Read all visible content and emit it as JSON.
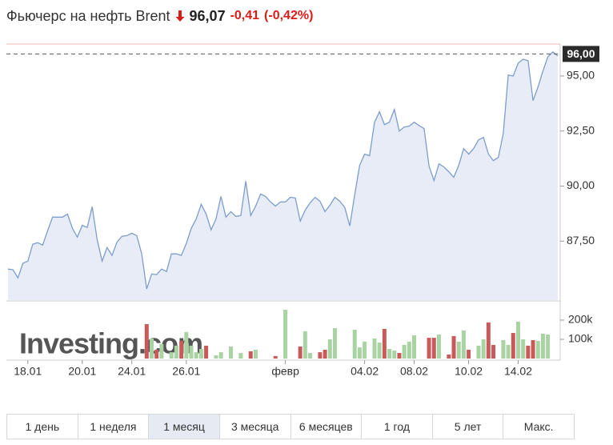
{
  "header": {
    "title": "Фьючерс на нефть Brent",
    "price": "96,07",
    "change": "-0,41",
    "change_pct": "(-0,42%)"
  },
  "watermark": "Investing.com",
  "tabs": [
    "1 день",
    "1 неделя",
    "1 месяц",
    "3 месяца",
    "6 месяцев",
    "1 год",
    "5 лет",
    "Макс."
  ],
  "active_tab": 2,
  "chart_data": {
    "type": "area",
    "categories": [
      null,
      null,
      null,
      null,
      "18.01",
      null,
      null,
      null,
      null,
      null,
      null,
      null,
      null,
      null,
      null,
      "20.01",
      null,
      null,
      null,
      null,
      null,
      null,
      null,
      null,
      null,
      "24.01",
      null,
      null,
      null,
      null,
      null,
      null,
      null,
      null,
      null,
      null,
      "26.01",
      null,
      null,
      null,
      null,
      null,
      null,
      null,
      null,
      null,
      null,
      null,
      null,
      null,
      null,
      null,
      null,
      null,
      null,
      null,
      "февр",
      null,
      null,
      null,
      null,
      null,
      null,
      null,
      null,
      null,
      null,
      null,
      null,
      null,
      null,
      null,
      "04.02",
      null,
      null,
      null,
      null,
      null,
      null,
      null,
      null,
      null,
      "08.02",
      null,
      null,
      null,
      null,
      null,
      null,
      null,
      null,
      null,
      null,
      "10.02",
      null,
      null,
      null,
      null,
      null,
      null,
      null,
      null,
      null,
      "14.02",
      null,
      null,
      null,
      null,
      null,
      null,
      null,
      null
    ],
    "series": [
      {
        "color": "#7d9dcc",
        "values": [
          86.23,
          86.2,
          85.83,
          86.49,
          86.59,
          87.36,
          87.43,
          87.32,
          87.97,
          88.59,
          88.59,
          88.59,
          88.73,
          88.08,
          87.68,
          88.22,
          88.12,
          89.06,
          87.57,
          86.59,
          87.21,
          86.85,
          87.46,
          87.72,
          87.75,
          87.86,
          87.75,
          86.92,
          85.33,
          86.01,
          85.98,
          86.23,
          86.12,
          86.92,
          86.92,
          86.85,
          87.39,
          88.08,
          88.51,
          89.17,
          88.73,
          88.01,
          88.51,
          89.53,
          88.59,
          88.84,
          88.62,
          88.66,
          90.22,
          88.66,
          89.09,
          89.64,
          89.53,
          89.28,
          89.09,
          89.28,
          89.28,
          89.49,
          89.46,
          88.41,
          88.91,
          89.24,
          89.49,
          89.31,
          88.84,
          89.13,
          89.49,
          89.31,
          89.02,
          88.19,
          89.6,
          90.94,
          91.45,
          91.38,
          92.9,
          93.37,
          92.79,
          92.9,
          93.48,
          92.5,
          92.68,
          92.72,
          92.9,
          92.75,
          92.61,
          90.91,
          90.25,
          91.01,
          90.87,
          90.65,
          90.4,
          90.94,
          91.7,
          91.45,
          91.7,
          92.1,
          92.21,
          91.45,
          91.16,
          91.3,
          92.39,
          95.04,
          95.0,
          95.58,
          95.76,
          95.69,
          93.88,
          94.49,
          95.22,
          95.87,
          96.09,
          95.91
        ]
      }
    ],
    "ylim": [
      84.82,
      96.45
    ],
    "yticks": [
      {
        "value": 87.5,
        "label": "87,50"
      },
      {
        "value": 90,
        "label": "90,00"
      },
      {
        "value": 92.5,
        "label": "92,50"
      },
      {
        "value": 95,
        "label": "95,00"
      }
    ],
    "last_value": {
      "value": 96,
      "label": "96,00"
    },
    "volume": {
      "type": "bar",
      "up_color": "#a9d3a3",
      "down_color": "#c85a5a",
      "values": [
        null,
        null,
        null,
        null,
        null,
        null,
        null,
        null,
        null,
        null,
        null,
        null,
        null,
        null,
        null,
        null,
        null,
        null,
        null,
        null,
        null,
        null,
        null,
        null,
        null,
        null,
        null,
        null,
        179000,
        104000,
        46000,
        75000,
        null,
        33000,
        67000,
        92000,
        138000,
        67000,
        33000,
        50000,
        67000,
        null,
        17000,
        33000,
        null,
        63000,
        null,
        29000,
        null,
        38000,
        46000,
        null,
        null,
        null,
        13000,
        null,
        254000,
        null,
        null,
        63000,
        142000,
        29000,
        null,
        33000,
        46000,
        100000,
        158000,
        null,
        null,
        null,
        150000,
        58000,
        88000,
        null,
        104000,
        83000,
        154000,
        50000,
        42000,
        29000,
        71000,
        88000,
        121000,
        null,
        null,
        108000,
        108000,
        125000,
        null,
        21000,
        117000,
        88000,
        146000,
        46000,
        null,
        67000,
        100000,
        188000,
        71000,
        null,
        96000,
        71000,
        133000,
        192000,
        100000,
        67000,
        96000,
        92000,
        129000,
        125000,
        null,
        null
      ],
      "ylim": [
        0,
        283000
      ],
      "yticks": [
        {
          "value": 100000,
          "label": "100k"
        },
        {
          "value": 200000,
          "label": "200k"
        }
      ]
    }
  }
}
